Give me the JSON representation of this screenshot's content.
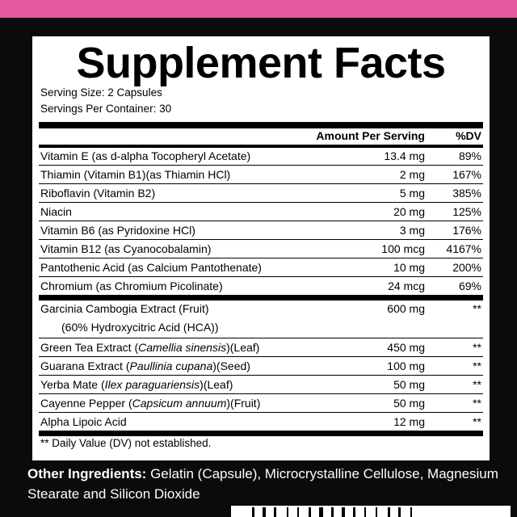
{
  "colors": {
    "accent_band": "#e45ba0",
    "background": "#0a0b0c",
    "panel": "#ffffff"
  },
  "title": "Supplement Facts",
  "serving_size": "Serving Size: 2 Capsules",
  "servings_per_container": "Servings Per Container: 30",
  "header": {
    "amount": "Amount Per Serving",
    "dv": "%DV"
  },
  "vitamins": [
    {
      "name": "Vitamin E (as d-alpha Tocopheryl Acetate)",
      "amount": "13.4 mg",
      "dv": "89%"
    },
    {
      "name": "Thiamin (Vitamin B1)(as Thiamin HCl)",
      "amount": "2 mg",
      "dv": "167%"
    },
    {
      "name": "Riboflavin (Vitamin B2)",
      "amount": "5 mg",
      "dv": "385%"
    },
    {
      "name": "Niacin",
      "amount": "20 mg",
      "dv": "125%"
    },
    {
      "name": "Vitamin B6 (as Pyridoxine HCl)",
      "amount": "3 mg",
      "dv": "176%"
    },
    {
      "name": "Vitamin B12 (as Cyanocobalamin)",
      "amount": "100 mcg",
      "dv": "4167%"
    },
    {
      "name": "Pantothenic Acid (as Calcium Pantothenate)",
      "amount": "10 mg",
      "dv": "200%"
    },
    {
      "name": "Chromium (as Chromium Picolinate)",
      "amount": "24 mcg",
      "dv": "69%"
    }
  ],
  "extracts": [
    {
      "name": "Garcinia Cambogia Extract (Fruit)",
      "sub": "(60% Hydroxycitric Acid (HCA))",
      "amount": "600 mg",
      "dv": "**"
    },
    {
      "name": "Green Tea Extract (",
      "latin": "Camellia sinensis",
      "suffix": ")(Leaf)",
      "amount": "450 mg",
      "dv": "**"
    },
    {
      "name": "Guarana Extract (",
      "latin": "Paullinia cupana",
      "suffix": ")(Seed)",
      "amount": "100 mg",
      "dv": "**"
    },
    {
      "name": "Yerba Mate (",
      "latin": "Ilex paraguariensis",
      "suffix": ")(Leaf)",
      "amount": "50 mg",
      "dv": "**"
    },
    {
      "name": "Cayenne Pepper (",
      "latin": "Capsicum annuum",
      "suffix": ")(Fruit)",
      "amount": "50 mg",
      "dv": "**"
    },
    {
      "name": "Alpha Lipoic Acid",
      "amount": "12 mg",
      "dv": "**"
    }
  ],
  "footnote": "** Daily Value (DV) not established.",
  "other_ingredients": {
    "label": "Other Ingredients:",
    "text": " Gelatin (Capsule), Microcrystalline Cellulose, Magnesium Stearate and Silicon Dioxide"
  }
}
